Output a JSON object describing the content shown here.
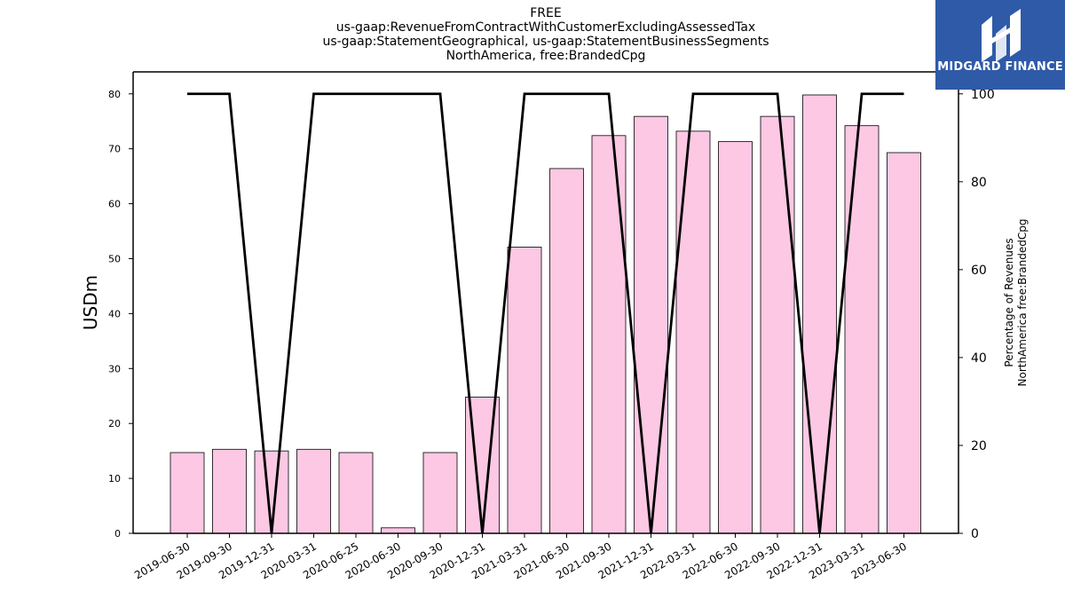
{
  "title_lines": [
    "FREE",
    "us-gaap:RevenueFromContractWithCustomerExcludingAssessedTax",
    "us-gaap:StatementGeographical, us-gaap:StatementBusinessSegments",
    "NorthAmerica, free:BrandedCpg"
  ],
  "logo": {
    "text": "MIDGARD FINANCE",
    "background": "#2f5aa8"
  },
  "chart_data": {
    "type": "bar",
    "categories": [
      "2019-06-30",
      "2019-09-30",
      "2019-12-31",
      "2020-03-31",
      "2020-06-25",
      "2020-06-30",
      "2020-09-30",
      "2020-12-31",
      "2021-03-31",
      "2021-06-30",
      "2021-09-30",
      "2021-12-31",
      "2022-03-31",
      "2022-06-30",
      "2022-09-30",
      "2022-12-31",
      "2023-03-31",
      "2023-06-30"
    ],
    "series": [
      {
        "axis": "left",
        "type": "bar",
        "color": "#fcc8e4",
        "values": [
          14.7,
          15.3,
          15.0,
          15.3,
          14.7,
          1.0,
          14.7,
          24.8,
          52.1,
          66.4,
          72.4,
          75.9,
          73.2,
          71.3,
          75.9,
          79.8,
          74.2,
          69.3
        ]
      },
      {
        "axis": "right",
        "type": "line",
        "color": "#000000",
        "values": [
          100,
          100,
          0,
          100,
          100,
          100,
          100,
          0,
          100,
          100,
          100,
          0,
          100,
          100,
          100,
          0,
          100,
          100
        ]
      }
    ],
    "ylabel": "USDm",
    "ylabel_right": [
      "Percentage of Revenues",
      "NorthAmerica free:BrandedCpg"
    ],
    "ylim": [
      0,
      84
    ],
    "yticks": [
      0,
      10,
      20,
      30,
      40,
      50,
      60,
      70,
      80
    ],
    "ylim_right": [
      0,
      105
    ],
    "yticks_right": [
      0,
      20,
      40,
      60,
      80,
      100
    ],
    "grid": false
  }
}
